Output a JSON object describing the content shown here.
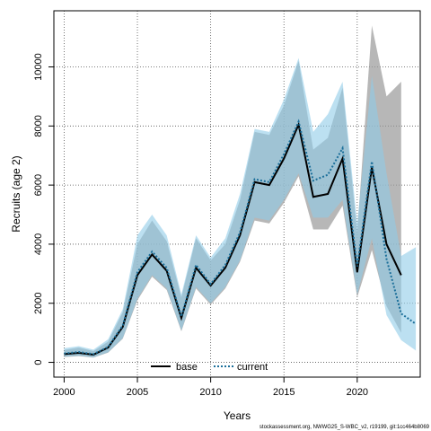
{
  "chart_data": {
    "type": "area",
    "xlabel": "Years",
    "ylabel": "Recruits (age 2)",
    "xlim": [
      1999.3,
      2024.3
    ],
    "ylim": [
      -500,
      11900
    ],
    "x_ticks": [
      2000,
      2005,
      2010,
      2015,
      2020
    ],
    "y_ticks": [
      0,
      2000,
      4000,
      6000,
      8000,
      10000
    ],
    "grid": true,
    "legend_position": "bottom-center",
    "series": [
      {
        "name": "base",
        "line_style": "solid",
        "line_color": "#000000",
        "band_color": "#999999",
        "x": [
          2000,
          2001,
          2002,
          2003,
          2004,
          2005,
          2006,
          2007,
          2008,
          2009,
          2010,
          2011,
          2012,
          2013,
          2014,
          2015,
          2016,
          2017,
          2018,
          2019,
          2020,
          2021,
          2022,
          2023
        ],
        "values": [
          280,
          320,
          260,
          500,
          1200,
          2950,
          3650,
          3100,
          1500,
          3200,
          2600,
          3200,
          4300,
          6100,
          6000,
          6900,
          8050,
          5600,
          5700,
          6900,
          3050,
          6600,
          4000,
          2950
        ],
        "lower": [
          180,
          210,
          160,
          330,
          800,
          2100,
          2900,
          2450,
          1050,
          2500,
          1950,
          2500,
          3400,
          4800,
          4700,
          5400,
          6300,
          4500,
          4500,
          5300,
          2200,
          3800,
          1900,
          1000
        ],
        "upper": [
          420,
          500,
          380,
          700,
          1700,
          4000,
          4800,
          4100,
          2200,
          4200,
          3450,
          4000,
          5500,
          7800,
          7700,
          8700,
          10200,
          7200,
          7600,
          9300,
          4400,
          11400,
          9000,
          9500
        ]
      },
      {
        "name": "current",
        "line_style": "dotted",
        "line_color": "#1b6f9a",
        "band_color": "#8fcbe8",
        "x": [
          2000,
          2001,
          2002,
          2003,
          2004,
          2005,
          2006,
          2007,
          2008,
          2009,
          2010,
          2011,
          2012,
          2013,
          2014,
          2015,
          2016,
          2017,
          2018,
          2019,
          2020,
          2021,
          2022,
          2023,
          2024
        ],
        "values": [
          300,
          350,
          280,
          520,
          1250,
          3050,
          3750,
          3200,
          1550,
          3300,
          2650,
          3300,
          4400,
          6200,
          6100,
          7050,
          8150,
          6150,
          6350,
          7250,
          3250,
          6800,
          3500,
          1650,
          1300
        ],
        "lower": [
          190,
          220,
          170,
          340,
          820,
          2150,
          2950,
          2500,
          1080,
          2550,
          2000,
          2550,
          3450,
          4900,
          4800,
          5500,
          6400,
          4900,
          4900,
          5500,
          2300,
          4200,
          1600,
          750,
          400
        ],
        "upper": [
          480,
          550,
          430,
          780,
          1800,
          4300,
          5000,
          4300,
          2300,
          4300,
          3550,
          4200,
          5700,
          7900,
          7800,
          8900,
          10300,
          7800,
          8400,
          9500,
          4700,
          9700,
          6400,
          3600,
          3900
        ]
      }
    ],
    "footer": "stockassessment.org, NWWG25_S-WBC_v2, r19199, git:1cc464b8069"
  }
}
